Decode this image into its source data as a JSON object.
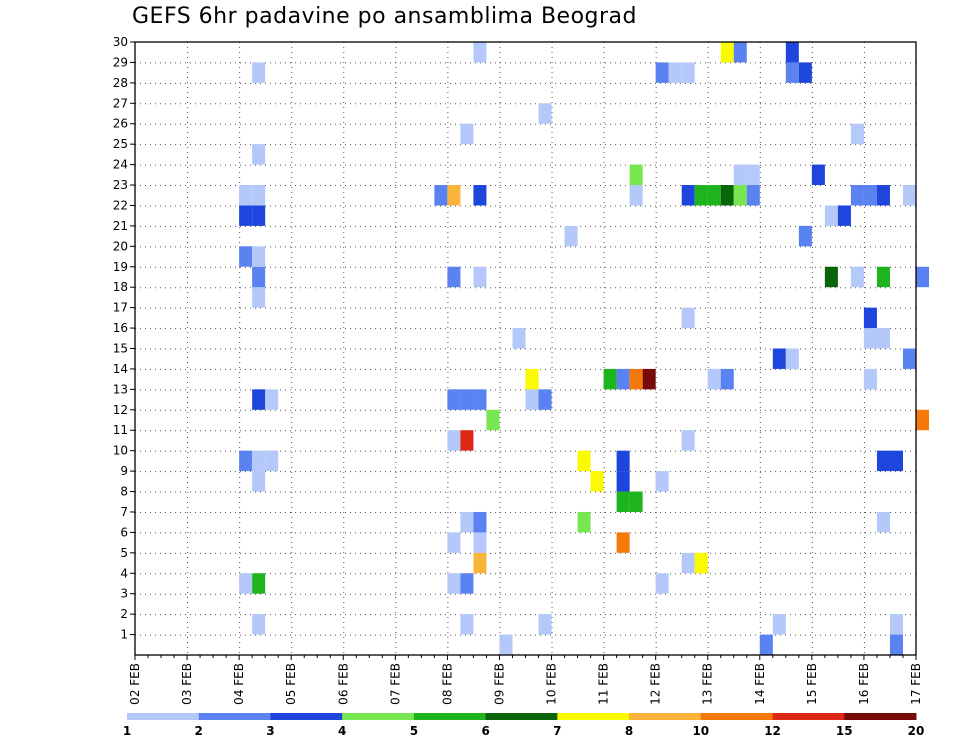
{
  "chart_data": {
    "type": "heatmap",
    "title": "GEFS 6hr padavine po ansamblima Beograd",
    "xlabel": "",
    "ylabel": "",
    "x_tick_labels": [
      "02 FEB",
      "03 FEB",
      "04 FEB",
      "05 FEB",
      "06 FEB",
      "07 FEB",
      "08 FEB",
      "09 FEB",
      "10 FEB",
      "11 FEB",
      "12 FEB",
      "13 FEB",
      "14 FEB",
      "15 FEB",
      "16 FEB",
      "17 FEB"
    ],
    "y_tick_labels": [
      "1",
      "2",
      "3",
      "4",
      "5",
      "6",
      "7",
      "8",
      "9",
      "10",
      "11",
      "12",
      "13",
      "14",
      "15",
      "16",
      "17",
      "18",
      "19",
      "20",
      "21",
      "22",
      "23",
      "24",
      "25",
      "26",
      "27",
      "28",
      "29",
      "30"
    ],
    "x_range_days": [
      0,
      15
    ],
    "y_range": [
      0,
      30
    ],
    "grid": true,
    "legend": {
      "placement": "bottom",
      "colors": [
        "#b4c8fa",
        "#5a82f0",
        "#1e46dc",
        "#78e650",
        "#1eb41e",
        "#0a640a",
        "#fafa00",
        "#fab43c",
        "#f5780a",
        "#dc2814",
        "#780a0a"
      ],
      "labels": [
        "1",
        "2",
        "3",
        "4",
        "5",
        "6",
        "7",
        "8",
        "10",
        "12",
        "15",
        "20"
      ]
    },
    "points": [
      {
        "d": 2.25,
        "m": 1,
        "v": 1.5
      },
      {
        "d": 6.25,
        "m": 1,
        "v": 1.5
      },
      {
        "d": 7.75,
        "m": 1,
        "v": 1.5
      },
      {
        "d": 12.25,
        "m": 1,
        "v": 1.5
      },
      {
        "d": 14.5,
        "m": 1,
        "v": 1.5
      },
      {
        "d": 7,
        "m": 0,
        "v": 1.5
      },
      {
        "d": 12,
        "m": 0,
        "v": 2.5
      },
      {
        "d": 14.5,
        "m": 0,
        "v": 2.5
      },
      {
        "d": 2,
        "m": 3,
        "v": 1.5
      },
      {
        "d": 2.25,
        "m": 3,
        "v": 5.5
      },
      {
        "d": 6,
        "m": 3,
        "v": 1.5
      },
      {
        "d": 6.25,
        "m": 3,
        "v": 2.5
      },
      {
        "d": 10,
        "m": 3,
        "v": 1.5
      },
      {
        "d": 6.5,
        "m": 4,
        "v": 9
      },
      {
        "d": 10.5,
        "m": 4,
        "v": 1.5
      },
      {
        "d": 10.75,
        "m": 4,
        "v": 7.5
      },
      {
        "d": 6,
        "m": 5,
        "v": 1.5
      },
      {
        "d": 6.5,
        "m": 5,
        "v": 1.5
      },
      {
        "d": 9.25,
        "m": 5,
        "v": 10.5
      },
      {
        "d": 6.25,
        "m": 6,
        "v": 1.5
      },
      {
        "d": 6.5,
        "m": 6,
        "v": 2.5
      },
      {
        "d": 8.5,
        "m": 6,
        "v": 4.5
      },
      {
        "d": 14.25,
        "m": 6,
        "v": 1.5
      },
      {
        "d": 9.25,
        "m": 7,
        "v": 5
      },
      {
        "d": 9.5,
        "m": 7,
        "v": 5
      },
      {
        "d": 2.25,
        "m": 8,
        "v": 1.5
      },
      {
        "d": 8.75,
        "m": 8,
        "v": 7.5
      },
      {
        "d": 9.25,
        "m": 8,
        "v": 3.5
      },
      {
        "d": 10,
        "m": 8,
        "v": 1.5
      },
      {
        "d": 2,
        "m": 9,
        "v": 2.5
      },
      {
        "d": 2.25,
        "m": 9,
        "v": 1.5
      },
      {
        "d": 2.5,
        "m": 9,
        "v": 1.5
      },
      {
        "d": 8.5,
        "m": 9,
        "v": 7.5
      },
      {
        "d": 9.25,
        "m": 9,
        "v": 3.5
      },
      {
        "d": 14.25,
        "m": 9,
        "v": 3.5
      },
      {
        "d": 14.5,
        "m": 9,
        "v": 3.5
      },
      {
        "d": 6,
        "m": 10,
        "v": 1.5
      },
      {
        "d": 6.25,
        "m": 10,
        "v": 13.5
      },
      {
        "d": 10.5,
        "m": 10,
        "v": 1.5
      },
      {
        "d": 6.75,
        "m": 11,
        "v": 4.5
      },
      {
        "d": 15,
        "m": 11,
        "v": 11
      },
      {
        "d": 2.25,
        "m": 12,
        "v": 3.5
      },
      {
        "d": 2.5,
        "m": 12,
        "v": 1.5
      },
      {
        "d": 6,
        "m": 12,
        "v": 2.5
      },
      {
        "d": 6.25,
        "m": 12,
        "v": 2.5
      },
      {
        "d": 6.5,
        "m": 12,
        "v": 2.5
      },
      {
        "d": 7.5,
        "m": 12,
        "v": 1.5
      },
      {
        "d": 7.75,
        "m": 12,
        "v": 2.5
      },
      {
        "d": 7.5,
        "m": 13,
        "v": 7.5
      },
      {
        "d": 9,
        "m": 13,
        "v": 5.5
      },
      {
        "d": 9.25,
        "m": 13,
        "v": 2.5
      },
      {
        "d": 9.5,
        "m": 13,
        "v": 11
      },
      {
        "d": 9.75,
        "m": 13,
        "v": 18
      },
      {
        "d": 11,
        "m": 13,
        "v": 1.5
      },
      {
        "d": 11.25,
        "m": 13,
        "v": 2.5
      },
      {
        "d": 14,
        "m": 13,
        "v": 1.5
      },
      {
        "d": 12.25,
        "m": 14,
        "v": 3.5
      },
      {
        "d": 12.5,
        "m": 14,
        "v": 1.5
      },
      {
        "d": 14.75,
        "m": 14,
        "v": 2.5
      },
      {
        "d": 7.25,
        "m": 15,
        "v": 1.5
      },
      {
        "d": 14,
        "m": 15,
        "v": 1.5
      },
      {
        "d": 14.25,
        "m": 15,
        "v": 1.5
      },
      {
        "d": 10.5,
        "m": 16,
        "v": 1.5
      },
      {
        "d": 14,
        "m": 16,
        "v": 3.5
      },
      {
        "d": 2.25,
        "m": 17,
        "v": 1.5
      },
      {
        "d": 2.25,
        "m": 18,
        "v": 2.5
      },
      {
        "d": 6,
        "m": 18,
        "v": 2.5
      },
      {
        "d": 6.5,
        "m": 18,
        "v": 1.5
      },
      {
        "d": 13.25,
        "m": 18,
        "v": 6.5
      },
      {
        "d": 13.75,
        "m": 18,
        "v": 1.5
      },
      {
        "d": 14.25,
        "m": 18,
        "v": 5.5
      },
      {
        "d": 15,
        "m": 18,
        "v": 2.5
      },
      {
        "d": 2,
        "m": 19,
        "v": 2.5
      },
      {
        "d": 2.25,
        "m": 19,
        "v": 1.5
      },
      {
        "d": 8.25,
        "m": 20,
        "v": 1.5
      },
      {
        "d": 12.75,
        "m": 20,
        "v": 2.5
      },
      {
        "d": 2,
        "m": 21,
        "v": 3.5
      },
      {
        "d": 2.25,
        "m": 21,
        "v": 3.5
      },
      {
        "d": 13.25,
        "m": 21,
        "v": 1.5
      },
      {
        "d": 13.5,
        "m": 21,
        "v": 3.5
      },
      {
        "d": 2,
        "m": 22,
        "v": 1.5
      },
      {
        "d": 2.25,
        "m": 22,
        "v": 1.5
      },
      {
        "d": 5.75,
        "m": 22,
        "v": 2.5
      },
      {
        "d": 6,
        "m": 22,
        "v": 9
      },
      {
        "d": 6.5,
        "m": 22,
        "v": 3.5
      },
      {
        "d": 9.5,
        "m": 22,
        "v": 1.5
      },
      {
        "d": 10.5,
        "m": 22,
        "v": 3.5
      },
      {
        "d": 10.75,
        "m": 22,
        "v": 5.5
      },
      {
        "d": 11,
        "m": 22,
        "v": 5.5
      },
      {
        "d": 11.25,
        "m": 22,
        "v": 6.5
      },
      {
        "d": 11.5,
        "m": 22,
        "v": 4.5
      },
      {
        "d": 11.75,
        "m": 22,
        "v": 2.5
      },
      {
        "d": 13.75,
        "m": 22,
        "v": 2.5
      },
      {
        "d": 14,
        "m": 22,
        "v": 2.5
      },
      {
        "d": 14.25,
        "m": 22,
        "v": 3.5
      },
      {
        "d": 14.75,
        "m": 22,
        "v": 1.5
      },
      {
        "d": 9.5,
        "m": 23,
        "v": 4.5
      },
      {
        "d": 11.5,
        "m": 23,
        "v": 1.5
      },
      {
        "d": 11.75,
        "m": 23,
        "v": 1.5
      },
      {
        "d": 13,
        "m": 23,
        "v": 3.5
      },
      {
        "d": 2.25,
        "m": 24,
        "v": 1.5
      },
      {
        "d": 6.25,
        "m": 25,
        "v": 1.5
      },
      {
        "d": 13.75,
        "m": 25,
        "v": 1.5
      },
      {
        "d": 7.75,
        "m": 26,
        "v": 1.5
      },
      {
        "d": 2.25,
        "m": 28,
        "v": 1.5
      },
      {
        "d": 10,
        "m": 28,
        "v": 2.5
      },
      {
        "d": 10.25,
        "m": 28,
        "v": 1.5
      },
      {
        "d": 10.5,
        "m": 28,
        "v": 1.5
      },
      {
        "d": 12.5,
        "m": 28,
        "v": 2.5
      },
      {
        "d": 12.75,
        "m": 28,
        "v": 3.5
      },
      {
        "d": 6.5,
        "m": 29,
        "v": 1.5
      },
      {
        "d": 11.25,
        "m": 29,
        "v": 7.5
      },
      {
        "d": 11.5,
        "m": 29,
        "v": 2.5
      },
      {
        "d": 12.5,
        "m": 29,
        "v": 3.5
      }
    ]
  }
}
